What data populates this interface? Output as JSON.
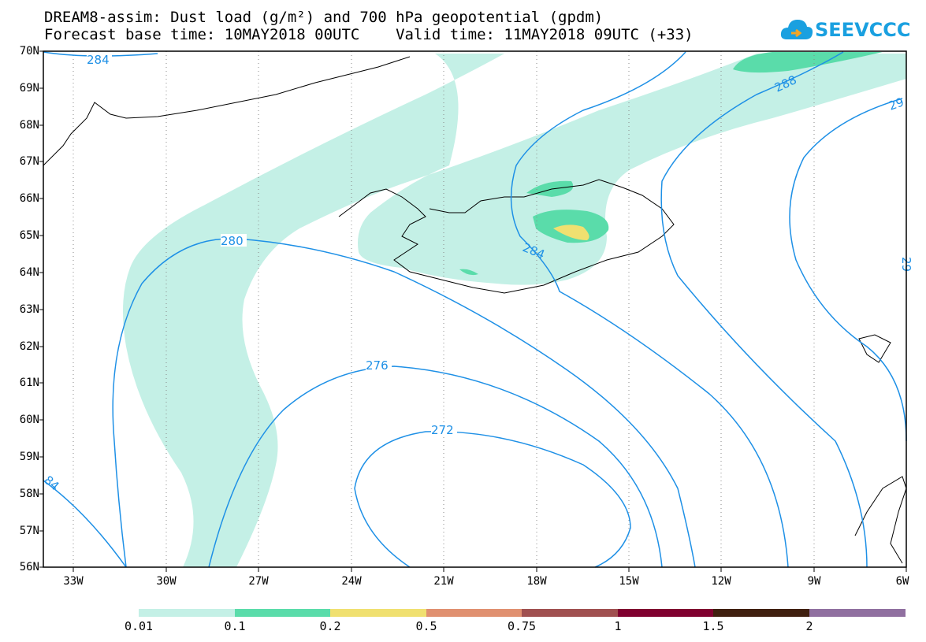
{
  "title_line1": "DREAM8-assim: Dust load (g/m²) and 700 hPa geopotential (gpdm)",
  "title_line2": "Forecast base time: 10MAY2018 00UTC    Valid time: 11MAY2018 09UTC (+33)",
  "logo_text": "SEEVCCC",
  "lat_labels": [
    "70N",
    "69N",
    "68N",
    "67N",
    "66N",
    "65N",
    "64N",
    "63N",
    "62N",
    "61N",
    "60N",
    "59N",
    "58N",
    "57N",
    "56N"
  ],
  "lon_labels": [
    "33W",
    "30W",
    "27W",
    "24W",
    "21W",
    "18W",
    "15W",
    "12W",
    "9W",
    "6W"
  ],
  "contour_labels": [
    "284",
    "280",
    "276",
    "272",
    "284",
    "288",
    "29",
    "29",
    "84"
  ],
  "colorbar": {
    "levels": [
      "0.01",
      "0.1",
      "0.2",
      "0.5",
      "0.75",
      "1",
      "1.5",
      "2"
    ],
    "colors": [
      "#c4f0e6",
      "#5adcaa",
      "#f0e070",
      "#e09070",
      "#a05050",
      "#800030",
      "#402010",
      "#9070a0"
    ]
  },
  "colors": {
    "contour": "#1e90e6",
    "dust_light": "#c4f0e6",
    "dust_mid": "#5adcaa",
    "dust_high": "#f0e070"
  }
}
